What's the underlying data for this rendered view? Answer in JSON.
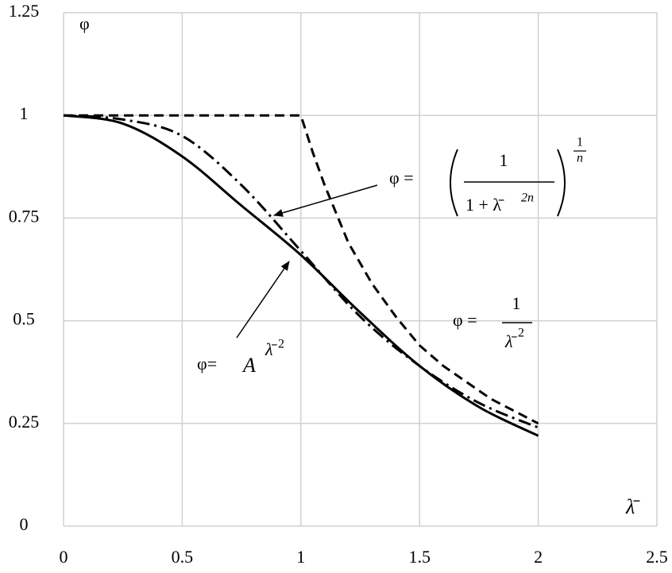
{
  "chart_data": {
    "type": "line",
    "y_label": "φ",
    "x_label": "λ̄",
    "xlim": [
      0,
      2.5
    ],
    "xticks": [
      0,
      0.5,
      1,
      1.5,
      2,
      2.5
    ],
    "ylim": [
      0,
      1.25
    ],
    "yticks": [
      0,
      0.25,
      0.5,
      0.75,
      1,
      1.25
    ],
    "grid": true,
    "series": [
      {
        "style": "solid",
        "smooth": true,
        "color": "#000000",
        "x": [
          0,
          0.25,
          0.5,
          0.75,
          1,
          1.25,
          1.5,
          1.75,
          2
        ],
        "values": [
          1,
          0.98,
          0.9,
          0.78,
          0.66,
          0.52,
          0.39,
          0.29,
          0.22
        ]
      },
      {
        "style": "dashed",
        "smooth": false,
        "color": "#000000",
        "x": [
          0,
          1,
          1.05,
          1.1,
          1.2,
          1.3,
          1.4,
          1.5,
          1.6,
          1.7,
          1.8,
          1.9,
          2
        ],
        "values": [
          1,
          1,
          0.91,
          0.83,
          0.69,
          0.59,
          0.51,
          0.44,
          0.39,
          0.35,
          0.31,
          0.28,
          0.25
        ]
      },
      {
        "style": "dashdot",
        "smooth": true,
        "color": "#000000",
        "x": [
          0,
          0.25,
          0.5,
          0.75,
          1,
          1.25,
          1.5,
          1.75,
          2
        ],
        "values": [
          1,
          0.99,
          0.95,
          0.83,
          0.67,
          0.51,
          0.39,
          0.3,
          0.24
        ]
      }
    ],
    "annotations": {
      "general": {
        "lead": "φ =",
        "num": "1",
        "den": "1 + λ̄",
        "den_exp": "2n",
        "exp_num": "1",
        "exp_den": "n"
      },
      "inverse": {
        "lead": "φ =",
        "num": "1",
        "den": "λ̄",
        "den_exp": "2"
      },
      "power": {
        "lead": "φ=",
        "base": "A",
        "exp": "λ̄",
        "exp_exp": "2"
      }
    }
  }
}
